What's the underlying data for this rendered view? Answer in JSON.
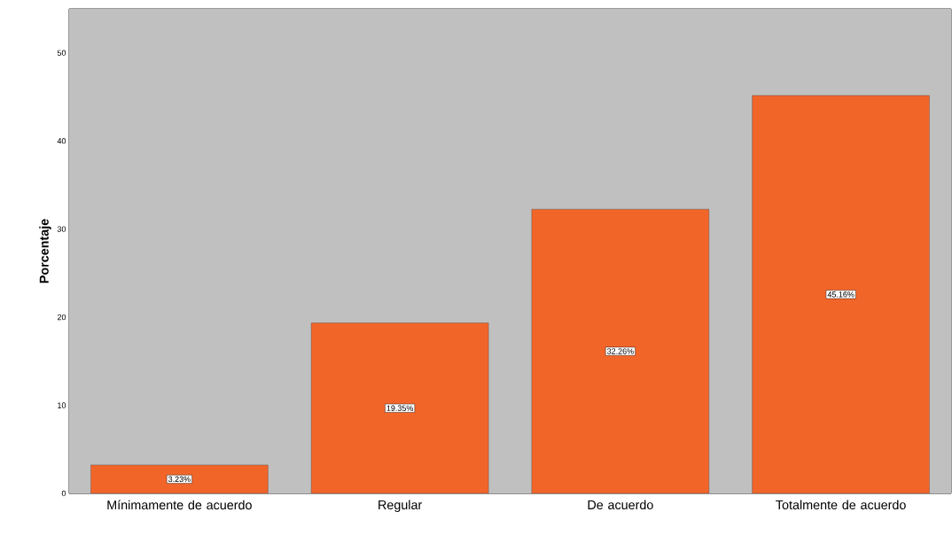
{
  "chart_data": {
    "type": "bar",
    "ylabel": "Porcentaje",
    "categories": [
      "Mínimamente de acuerdo",
      "Regular",
      "De acuerdo",
      "Totalmente de acuerdo"
    ],
    "values": [
      3.23,
      19.35,
      32.26,
      45.16
    ],
    "value_labels": [
      "3.23%",
      "19.35%",
      "32.26%",
      "45.16%"
    ],
    "color": "#f26529",
    "ylim": [
      0,
      55
    ],
    "yticks": [
      0,
      10,
      20,
      30,
      40,
      50
    ],
    "grid": "y"
  }
}
